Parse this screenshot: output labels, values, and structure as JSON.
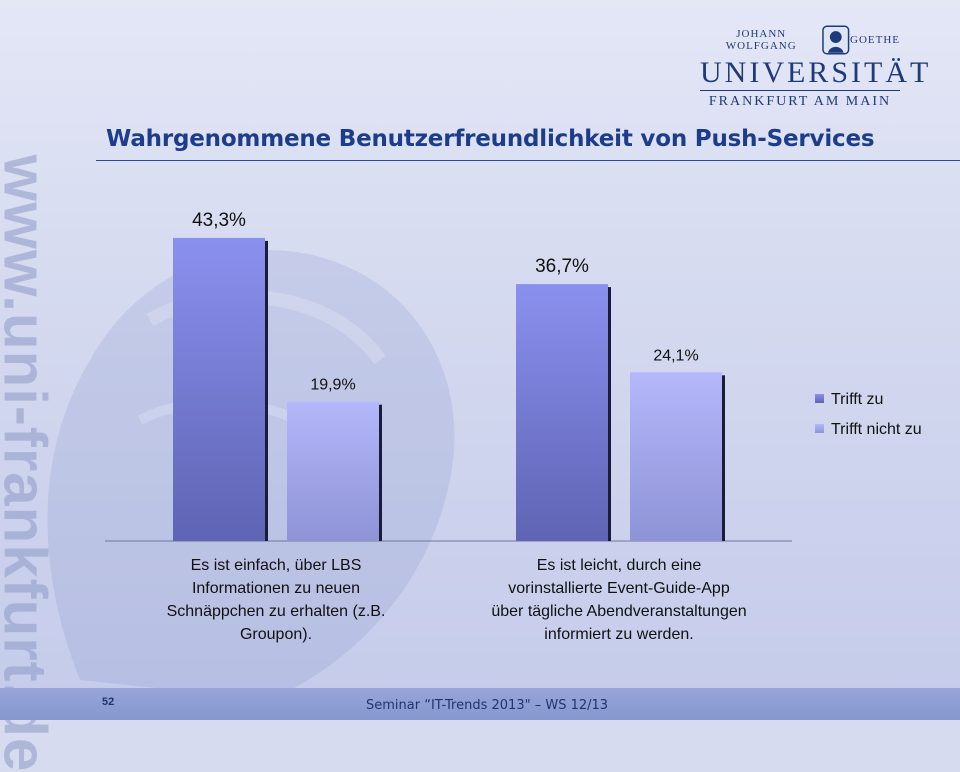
{
  "branding": {
    "logo_top_left": "JOHANN WOLFGANG",
    "logo_top_right": "GOETHE",
    "logo_main": "UNIVERSITÄT",
    "logo_sub": "FRANKFURT AM MAIN",
    "watermark": "www.uni-frankfurt.de"
  },
  "slide": {
    "title": "Wahrgenommene Benutzerfreundlichkeit von Push-Services"
  },
  "footer": {
    "page_number": "52",
    "text": "Seminar “IT-Trends 2013\" – WS 12/13"
  },
  "colors": {
    "series_1": "#7f86e6",
    "series_2": "#aab0f6",
    "title": "#1c3d8c"
  },
  "chart_data": {
    "type": "bar",
    "categories": [
      [
        "Es ist einfach, über LBS",
        "Informationen zu neuen",
        "Schnäppchen zu erhalten (z.B.",
        "Groupon)."
      ],
      [
        "Es ist leicht, durch eine",
        "vorinstallierte Event-Guide-App",
        "über tägliche Abendveranstaltungen",
        "informiert zu werden."
      ]
    ],
    "series": [
      {
        "name": "Trifft zu",
        "values": [
          43.3,
          36.7
        ],
        "labels": [
          "43,3%",
          "36,7%"
        ]
      },
      {
        "name": "Trifft nicht zu",
        "values": [
          19.9,
          24.1
        ],
        "labels": [
          "19,9%",
          "24,1%"
        ]
      }
    ],
    "ylim": [
      0,
      50
    ],
    "grid": false,
    "legend": "right"
  }
}
